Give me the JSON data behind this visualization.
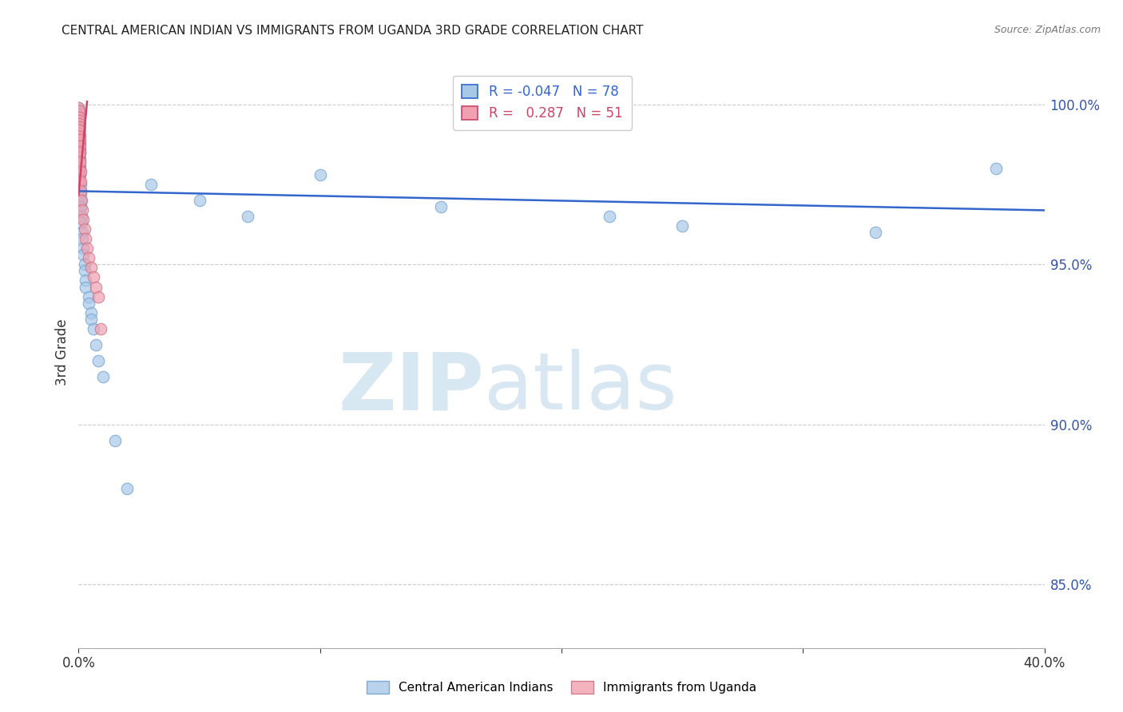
{
  "title": "CENTRAL AMERICAN INDIAN VS IMMIGRANTS FROM UGANDA 3RD GRADE CORRELATION CHART",
  "source": "Source: ZipAtlas.com",
  "ylabel": "3rd Grade",
  "legend_blue_label": "Central American Indians",
  "legend_pink_label": "Immigrants from Uganda",
  "watermark_zip": "ZIP",
  "watermark_atlas": "atlas",
  "blue_color": "#a8c8e8",
  "pink_color": "#f0a0b0",
  "blue_line_color": "#3366cc",
  "pink_line_color": "#cc4466",
  "blue_scatter": [
    [
      0.002,
      99.9
    ],
    [
      0.003,
      99.7
    ],
    [
      0.004,
      99.5
    ],
    [
      0.005,
      99.3
    ],
    [
      0.006,
      99.1
    ],
    [
      0.007,
      98.9
    ],
    [
      0.008,
      98.7
    ],
    [
      0.009,
      98.5
    ],
    [
      0.01,
      99.6
    ],
    [
      0.01,
      99.4
    ],
    [
      0.01,
      99.2
    ],
    [
      0.01,
      99.0
    ],
    [
      0.01,
      98.8
    ],
    [
      0.01,
      98.6
    ],
    [
      0.01,
      98.4
    ],
    [
      0.01,
      98.2
    ],
    [
      0.01,
      98.0
    ],
    [
      0.01,
      97.8
    ],
    [
      0.01,
      97.6
    ],
    [
      0.01,
      97.4
    ],
    [
      0.012,
      99.8
    ],
    [
      0.012,
      99.6
    ],
    [
      0.012,
      99.4
    ],
    [
      0.015,
      99.5
    ],
    [
      0.015,
      99.3
    ],
    [
      0.015,
      99.1
    ],
    [
      0.015,
      98.9
    ],
    [
      0.02,
      99.4
    ],
    [
      0.02,
      99.2
    ],
    [
      0.02,
      99.0
    ],
    [
      0.02,
      98.8
    ],
    [
      0.025,
      99.3
    ],
    [
      0.025,
      99.1
    ],
    [
      0.025,
      98.9
    ],
    [
      0.025,
      98.7
    ],
    [
      0.03,
      99.2
    ],
    [
      0.03,
      99.0
    ],
    [
      0.03,
      98.8
    ],
    [
      0.04,
      99.0
    ],
    [
      0.04,
      98.8
    ],
    [
      0.04,
      98.6
    ],
    [
      0.05,
      98.5
    ],
    [
      0.05,
      98.3
    ],
    [
      0.05,
      98.1
    ],
    [
      0.06,
      98.0
    ],
    [
      0.06,
      97.8
    ],
    [
      0.07,
      97.5
    ],
    [
      0.07,
      97.3
    ],
    [
      0.08,
      97.0
    ],
    [
      0.08,
      96.8
    ],
    [
      0.1,
      97.2
    ],
    [
      0.1,
      97.0
    ],
    [
      0.1,
      96.8
    ],
    [
      0.12,
      96.5
    ],
    [
      0.12,
      96.3
    ],
    [
      0.15,
      96.0
    ],
    [
      0.15,
      95.8
    ],
    [
      0.2,
      95.5
    ],
    [
      0.2,
      95.3
    ],
    [
      0.25,
      95.0
    ],
    [
      0.25,
      94.8
    ],
    [
      0.3,
      94.5
    ],
    [
      0.3,
      94.3
    ],
    [
      0.4,
      94.0
    ],
    [
      0.4,
      93.8
    ],
    [
      0.5,
      93.5
    ],
    [
      0.5,
      93.3
    ],
    [
      0.6,
      93.0
    ],
    [
      0.7,
      92.5
    ],
    [
      0.8,
      92.0
    ],
    [
      1.0,
      91.5
    ],
    [
      1.5,
      89.5
    ],
    [
      2.0,
      88.0
    ],
    [
      3.0,
      97.5
    ],
    [
      5.0,
      97.0
    ],
    [
      7.0,
      96.5
    ],
    [
      10.0,
      97.8
    ],
    [
      15.0,
      96.8
    ],
    [
      22.0,
      96.5
    ],
    [
      25.0,
      96.2
    ],
    [
      33.0,
      96.0
    ],
    [
      38.0,
      98.0
    ]
  ],
  "pink_scatter": [
    [
      0.002,
      99.9
    ],
    [
      0.003,
      99.7
    ],
    [
      0.004,
      99.5
    ],
    [
      0.005,
      99.3
    ],
    [
      0.006,
      99.1
    ],
    [
      0.007,
      98.9
    ],
    [
      0.008,
      98.7
    ],
    [
      0.009,
      98.5
    ],
    [
      0.01,
      99.6
    ],
    [
      0.01,
      99.4
    ],
    [
      0.01,
      99.2
    ],
    [
      0.01,
      99.0
    ],
    [
      0.01,
      98.8
    ],
    [
      0.01,
      98.6
    ],
    [
      0.01,
      98.4
    ],
    [
      0.01,
      98.2
    ],
    [
      0.01,
      98.0
    ],
    [
      0.01,
      97.8
    ],
    [
      0.01,
      97.6
    ],
    [
      0.012,
      99.8
    ],
    [
      0.012,
      99.6
    ],
    [
      0.015,
      99.5
    ],
    [
      0.015,
      99.3
    ],
    [
      0.02,
      99.4
    ],
    [
      0.02,
      99.2
    ],
    [
      0.02,
      99.0
    ],
    [
      0.025,
      99.3
    ],
    [
      0.025,
      99.1
    ],
    [
      0.03,
      99.2
    ],
    [
      0.03,
      99.0
    ],
    [
      0.04,
      98.9
    ],
    [
      0.04,
      98.7
    ],
    [
      0.05,
      98.5
    ],
    [
      0.06,
      98.2
    ],
    [
      0.07,
      97.9
    ],
    [
      0.08,
      97.6
    ],
    [
      0.1,
      97.3
    ],
    [
      0.12,
      97.0
    ],
    [
      0.15,
      96.7
    ],
    [
      0.2,
      96.4
    ],
    [
      0.25,
      96.1
    ],
    [
      0.3,
      95.8
    ],
    [
      0.35,
      95.5
    ],
    [
      0.4,
      95.2
    ],
    [
      0.5,
      94.9
    ],
    [
      0.6,
      94.6
    ],
    [
      0.7,
      94.3
    ],
    [
      0.8,
      94.0
    ],
    [
      0.9,
      93.0
    ]
  ],
  "blue_line_x": [
    0.0,
    40.0
  ],
  "blue_line_y": [
    97.3,
    96.7
  ],
  "pink_line_x": [
    0.0,
    0.35
  ],
  "pink_line_y": [
    97.2,
    100.1
  ],
  "xlim": [
    0.0,
    40.0
  ],
  "ylim": [
    83.0,
    101.5
  ],
  "yticks": [
    100.0,
    95.0,
    90.0,
    85.0
  ],
  "xtick_positions": [
    0.0,
    10.0,
    20.0,
    30.0,
    40.0
  ],
  "xtick_labels": [
    "0.0%",
    "",
    "",
    "",
    "40.0%"
  ]
}
